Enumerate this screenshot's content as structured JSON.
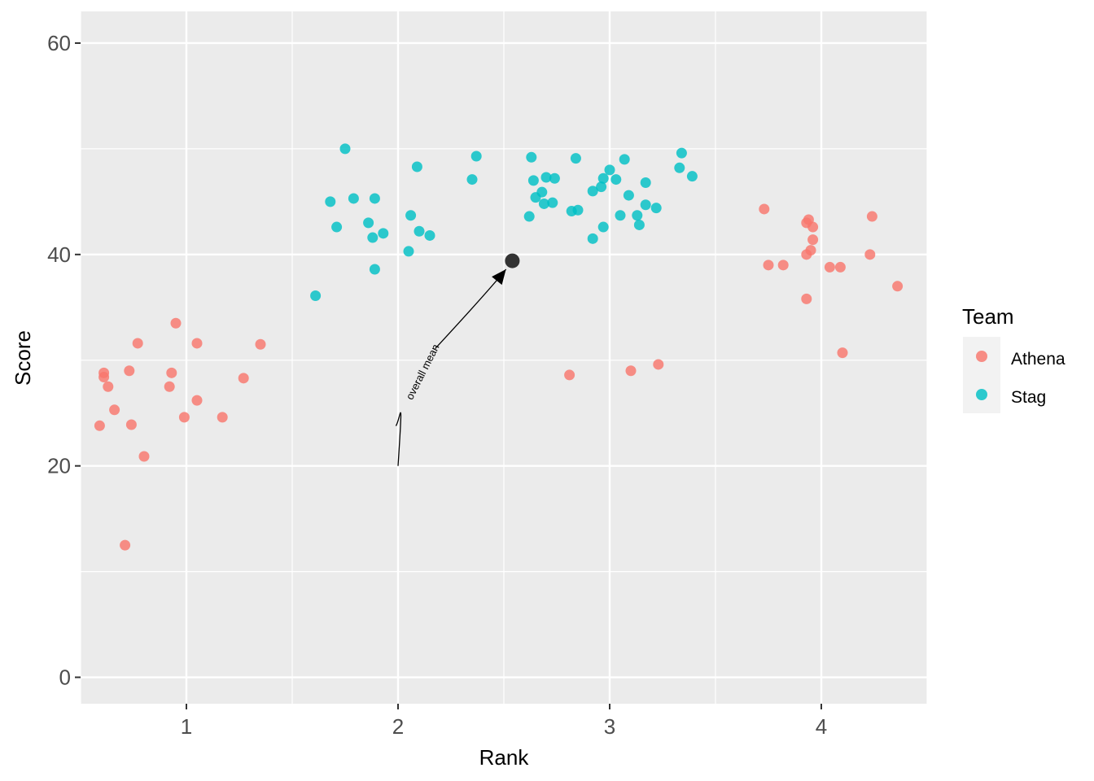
{
  "chart_data": {
    "type": "scatter",
    "xlabel": "Rank",
    "ylabel": "Score",
    "xlim": [
      0.5,
      4.5
    ],
    "ylim": [
      -2.5,
      63
    ],
    "x_ticks": [
      1,
      2,
      3,
      4
    ],
    "y_ticks": [
      0,
      20,
      40,
      60
    ],
    "grid": true,
    "legend": {
      "title": "Team",
      "position": "right",
      "entries": [
        {
          "name": "Athena",
          "color": "#F8766D"
        },
        {
          "name": "Stag",
          "color": "#00BFC4"
        }
      ]
    },
    "series": [
      {
        "name": "Athena",
        "color": "#F8766D",
        "points": [
          [
            0.59,
            23.8
          ],
          [
            0.61,
            28.4
          ],
          [
            0.61,
            28.8
          ],
          [
            0.63,
            27.5
          ],
          [
            0.66,
            25.3
          ],
          [
            0.71,
            12.5
          ],
          [
            0.73,
            29.0
          ],
          [
            0.74,
            23.9
          ],
          [
            0.77,
            31.6
          ],
          [
            0.8,
            20.9
          ],
          [
            0.92,
            27.5
          ],
          [
            0.93,
            28.8
          ],
          [
            0.95,
            33.5
          ],
          [
            0.99,
            24.6
          ],
          [
            1.05,
            31.6
          ],
          [
            1.05,
            26.2
          ],
          [
            1.17,
            24.6
          ],
          [
            1.27,
            28.3
          ],
          [
            1.35,
            31.5
          ],
          [
            2.81,
            28.6
          ],
          [
            3.1,
            29.0
          ],
          [
            3.23,
            29.6
          ],
          [
            3.73,
            44.3
          ],
          [
            3.75,
            39.0
          ],
          [
            3.82,
            39.0
          ],
          [
            3.93,
            35.8
          ],
          [
            3.93,
            43.0
          ],
          [
            3.93,
            40.0
          ],
          [
            3.94,
            43.3
          ],
          [
            3.95,
            40.4
          ],
          [
            3.96,
            41.4
          ],
          [
            3.96,
            42.6
          ],
          [
            4.04,
            38.8
          ],
          [
            4.09,
            38.8
          ],
          [
            4.1,
            30.7
          ],
          [
            4.23,
            40.0
          ],
          [
            4.24,
            43.6
          ],
          [
            4.36,
            37.0
          ]
        ]
      },
      {
        "name": "Stag",
        "color": "#00BFC4",
        "points": [
          [
            1.61,
            36.1
          ],
          [
            1.68,
            45.0
          ],
          [
            1.71,
            42.6
          ],
          [
            1.75,
            50.0
          ],
          [
            1.79,
            45.3
          ],
          [
            1.86,
            43.0
          ],
          [
            1.88,
            41.6
          ],
          [
            1.89,
            45.3
          ],
          [
            1.89,
            38.6
          ],
          [
            1.93,
            42.0
          ],
          [
            2.05,
            40.3
          ],
          [
            2.06,
            43.7
          ],
          [
            2.09,
            48.3
          ],
          [
            2.1,
            42.2
          ],
          [
            2.15,
            41.8
          ],
          [
            2.35,
            47.1
          ],
          [
            2.37,
            49.3
          ],
          [
            2.62,
            43.6
          ],
          [
            2.63,
            49.2
          ],
          [
            2.64,
            47.0
          ],
          [
            2.65,
            45.4
          ],
          [
            2.68,
            45.9
          ],
          [
            2.69,
            44.8
          ],
          [
            2.7,
            47.3
          ],
          [
            2.73,
            44.9
          ],
          [
            2.74,
            47.2
          ],
          [
            2.82,
            44.1
          ],
          [
            2.84,
            49.1
          ],
          [
            2.85,
            44.2
          ],
          [
            2.92,
            41.5
          ],
          [
            2.92,
            46.0
          ],
          [
            2.96,
            46.4
          ],
          [
            2.97,
            47.2
          ],
          [
            2.97,
            42.6
          ],
          [
            3.0,
            48.0
          ],
          [
            3.03,
            47.1
          ],
          [
            3.05,
            43.7
          ],
          [
            3.07,
            49.0
          ],
          [
            3.09,
            45.6
          ],
          [
            3.13,
            43.7
          ],
          [
            3.14,
            42.8
          ],
          [
            3.17,
            44.7
          ],
          [
            3.17,
            46.8
          ],
          [
            3.22,
            44.4
          ],
          [
            3.33,
            48.2
          ],
          [
            3.34,
            49.6
          ],
          [
            3.39,
            47.4
          ]
        ]
      }
    ],
    "annotations": [
      {
        "type": "point",
        "label": "overall mean",
        "x": 2.54,
        "y": 39.4,
        "color": "#333333"
      },
      {
        "type": "curved-arrow",
        "from": [
          2.0,
          20.0
        ],
        "to": [
          2.51,
          38.6
        ]
      }
    ]
  }
}
